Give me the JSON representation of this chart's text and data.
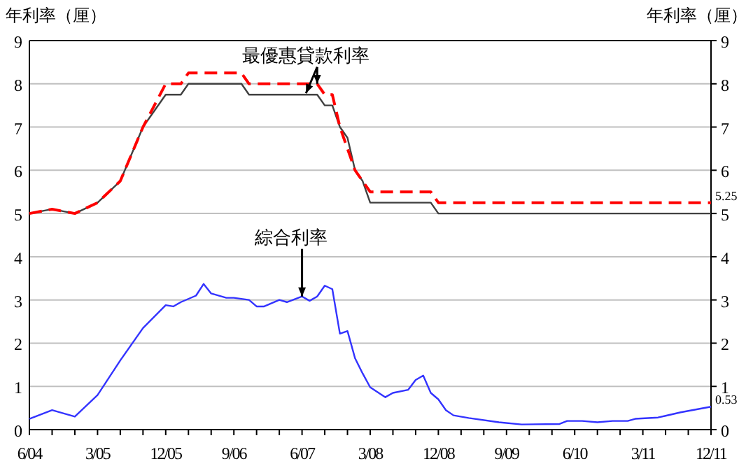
{
  "chart_data": {
    "type": "line",
    "ylabel": "年利率（厘）",
    "y2label": "年利率（厘）",
    "ylim": [
      0,
      9
    ],
    "yticks": [
      0,
      1,
      2,
      3,
      4,
      5,
      6,
      7,
      8,
      9
    ],
    "y2lim": [
      0,
      9
    ],
    "y2ticks": [
      0,
      1,
      2,
      3,
      4,
      5,
      6,
      7,
      8,
      9
    ],
    "xlim": [
      "2004-06",
      "2011-12"
    ],
    "grid": "y",
    "xticks": [
      {
        "value": "2004-06",
        "label": "6/04"
      },
      {
        "value": "2004-09",
        "label": null
      },
      {
        "value": "2004-12",
        "label": null
      },
      {
        "value": "2005-03",
        "label": "3/05"
      },
      {
        "value": "2005-06",
        "label": null
      },
      {
        "value": "2005-09",
        "label": null
      },
      {
        "value": "2005-12",
        "label": "12/05"
      },
      {
        "value": "2006-03",
        "label": null
      },
      {
        "value": "2006-06",
        "label": null
      },
      {
        "value": "2006-09",
        "label": "9/06"
      },
      {
        "value": "2006-12",
        "label": null
      },
      {
        "value": "2007-03",
        "label": null
      },
      {
        "value": "2007-06",
        "label": "6/07"
      },
      {
        "value": "2007-09",
        "label": null
      },
      {
        "value": "2007-12",
        "label": null
      },
      {
        "value": "2008-03",
        "label": "3/08"
      },
      {
        "value": "2008-06",
        "label": null
      },
      {
        "value": "2008-09",
        "label": null
      },
      {
        "value": "2008-12",
        "label": "12/08"
      },
      {
        "value": "2009-03",
        "label": null
      },
      {
        "value": "2009-06",
        "label": null
      },
      {
        "value": "2009-09",
        "label": "9/09"
      },
      {
        "value": "2009-12",
        "label": null
      },
      {
        "value": "2010-03",
        "label": null
      },
      {
        "value": "2010-06",
        "label": "6/10"
      },
      {
        "value": "2010-09",
        "label": null
      },
      {
        "value": "2010-12",
        "label": null
      },
      {
        "value": "2011-03",
        "label": "3/11"
      },
      {
        "value": "2011-06",
        "label": null
      },
      {
        "value": "2011-09",
        "label": null
      },
      {
        "value": "2011-12",
        "label": "12/11"
      }
    ],
    "series": [
      {
        "color": "#404040",
        "line_style": "solid",
        "x": [
          "2004-06",
          "2004-09",
          "2004-12",
          "2005-03",
          "2005-06",
          "2005-09",
          "2005-12",
          "2006-02",
          "2006-03",
          "2006-10",
          "2006-11",
          "2007-08",
          "2007-09",
          "2007-10",
          "2007-11",
          "2007-12",
          "2008-01",
          "2008-02",
          "2008-03",
          "2008-11",
          "2008-12",
          "2011-12"
        ],
        "values": [
          5.0,
          5.1,
          5.0,
          5.25,
          5.75,
          7.0,
          7.75,
          7.75,
          8.0,
          8.0,
          7.75,
          7.75,
          7.5,
          7.5,
          7.0,
          6.75,
          6.0,
          5.75,
          5.25,
          5.25,
          5.0,
          5.0
        ]
      },
      {
        "color": "#ff0000",
        "line_style": "dashed",
        "x": [
          "2004-06",
          "2004-09",
          "2004-12",
          "2005-03",
          "2005-06",
          "2005-09",
          "2005-12",
          "2006-02",
          "2006-03",
          "2006-10",
          "2006-11",
          "2007-08",
          "2007-09",
          "2007-10",
          "2007-11",
          "2008-01",
          "2008-03",
          "2008-11",
          "2008-12",
          "2011-12"
        ],
        "values": [
          5.0,
          5.1,
          5.0,
          5.25,
          5.75,
          7.0,
          8.0,
          8.0,
          8.25,
          8.25,
          8.0,
          8.0,
          7.75,
          7.75,
          7.0,
          6.0,
          5.5,
          5.5,
          5.25,
          5.25
        ]
      },
      {
        "color": "#3333ff",
        "line_style": "solid",
        "x": [
          "2004-06",
          "2004-09",
          "2004-12",
          "2005-03",
          "2005-06",
          "2005-09",
          "2005-12",
          "2006-01",
          "2006-02",
          "2006-04",
          "2006-05",
          "2006-06",
          "2006-08",
          "2006-09",
          "2006-11",
          "2006-12",
          "2007-01",
          "2007-03",
          "2007-04",
          "2007-06",
          "2007-07",
          "2007-08",
          "2007-09",
          "2007-10",
          "2007-11",
          "2007-12",
          "2008-01",
          "2008-02",
          "2008-03",
          "2008-05",
          "2008-06",
          "2008-08",
          "2008-09",
          "2008-10",
          "2008-11",
          "2008-12",
          "2009-01",
          "2009-02",
          "2009-04",
          "2009-08",
          "2009-11",
          "2010-04",
          "2010-05",
          "2010-07",
          "2010-09",
          "2010-11",
          "2011-01",
          "2011-02",
          "2011-05",
          "2011-06",
          "2011-08",
          "2011-12"
        ],
        "values": [
          0.25,
          0.45,
          0.3,
          0.8,
          1.6,
          2.35,
          2.88,
          2.85,
          2.95,
          3.1,
          3.37,
          3.15,
          3.05,
          3.05,
          3.0,
          2.85,
          2.85,
          3.0,
          2.95,
          3.08,
          2.98,
          3.08,
          3.33,
          3.25,
          2.22,
          2.28,
          1.65,
          1.3,
          0.98,
          0.75,
          0.85,
          0.92,
          1.15,
          1.25,
          0.85,
          0.7,
          0.45,
          0.33,
          0.27,
          0.17,
          0.12,
          0.13,
          0.2,
          0.2,
          0.17,
          0.2,
          0.2,
          0.25,
          0.28,
          0.32,
          0.4,
          0.53
        ]
      }
    ],
    "annotations": [
      {
        "text": "最優惠貸款利率",
        "x": "2007-08",
        "y": 8.0
      },
      {
        "text": "綜合利率",
        "x": "2007-06",
        "y": 3.08
      },
      {
        "text": "5.25",
        "x": "2011-12",
        "y": 5.25
      },
      {
        "text": "0.53",
        "x": "2011-12",
        "y": 0.53
      }
    ]
  }
}
